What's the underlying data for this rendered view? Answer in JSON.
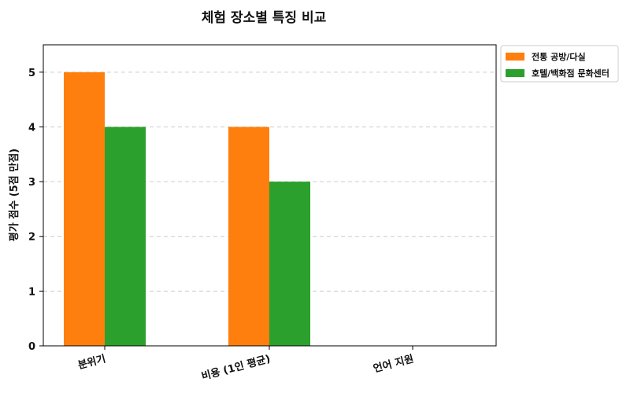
{
  "chart_data": {
    "type": "bar",
    "title": "체험 장소별 특징 비교",
    "xlabel": "",
    "ylabel": "평가 점수 (5점 만점)",
    "categories": [
      "분위기",
      "비용 (1인 평균)",
      "언어 지원"
    ],
    "series": [
      {
        "name": "전통 공방/다실",
        "values": [
          5,
          4,
          0
        ],
        "color": "#ff7f0e"
      },
      {
        "name": "호텔/백화점 문화센터",
        "values": [
          4,
          3,
          0
        ],
        "color": "#2ca02c"
      }
    ],
    "ylim": [
      0,
      5.5
    ],
    "yticks": [
      0,
      1,
      2,
      3,
      4,
      5
    ],
    "grid": true,
    "legend": "outside-top-right"
  }
}
